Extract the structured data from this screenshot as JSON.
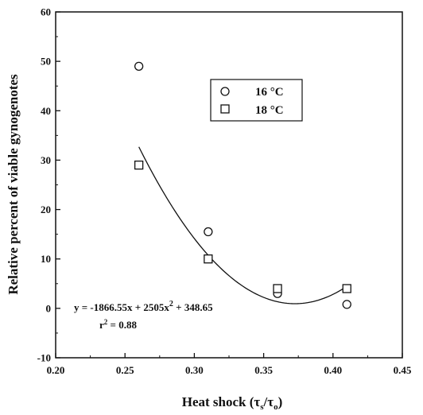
{
  "chart_data": {
    "type": "scatter",
    "xlabel_main": "Heat shock (",
    "xlabel_tau_num": "τ",
    "xlabel_sub_num": "s",
    "xlabel_slash": "/",
    "xlabel_tau_den": "τ",
    "xlabel_sub_den": "o",
    "xlabel_close": ")",
    "ylabel": "Relative percent of viable gynogenotes",
    "xlim": [
      0.2,
      0.45
    ],
    "ylim": [
      -10,
      60
    ],
    "x_ticks": [
      "0.20",
      "0.25",
      "0.30",
      "0.35",
      "0.40",
      "0.45"
    ],
    "y_ticks": [
      "-10",
      "0",
      "10",
      "20",
      "30",
      "40",
      "50",
      "60"
    ],
    "legend_position": "top-right",
    "series": [
      {
        "name": "16 °C",
        "marker": "circle",
        "x": [
          0.26,
          0.31,
          0.36,
          0.41
        ],
        "y": [
          49,
          15.5,
          3,
          0.8
        ]
      },
      {
        "name": "18 °C",
        "marker": "square",
        "x": [
          0.26,
          0.31,
          0.36,
          0.41
        ],
        "y": [
          29,
          10,
          4,
          4
        ]
      }
    ],
    "fit": {
      "a": 2505,
      "b": -1866.55,
      "c": 348.65,
      "x_range": [
        0.26,
        0.41
      ]
    },
    "annotation": {
      "equation_lead": "y = -1866.55x + 2505x",
      "equation_exp": "2",
      "equation_tail": " + 348.65",
      "r2_lead": "r",
      "r2_exp": "2",
      "r2_tail": " = 0.88"
    }
  }
}
